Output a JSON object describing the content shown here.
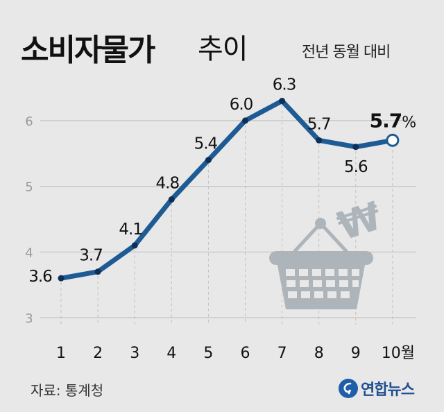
{
  "header": {
    "title_bold": "소비자물가",
    "title_light": "추이",
    "unit_note": "전년 동월 대비"
  },
  "footer": {
    "source": "자료: 통계청",
    "logo_text": "연합뉴스"
  },
  "colors": {
    "line": "#1e5b94",
    "background": "#e8e8e8",
    "basket": "#adb5bb"
  },
  "chart_data": {
    "type": "line",
    "title": "소비자물가 추이",
    "subtitle": "전년 동월 대비",
    "xlabel": "",
    "ylabel": "",
    "x": [
      "1",
      "2",
      "3",
      "4",
      "5",
      "6",
      "7",
      "8",
      "9",
      "10월"
    ],
    "series": [
      {
        "values": [
          3.6,
          3.7,
          4.1,
          4.8,
          5.4,
          6.0,
          6.3,
          5.7,
          5.6,
          5.7
        ],
        "labels": [
          "3.6",
          "3.7",
          "4.1",
          "4.8",
          "5.4",
          "6.0",
          "6.3",
          "5.7",
          "5.6",
          "5.7%"
        ]
      }
    ],
    "yticks": [
      "3",
      "4",
      "5",
      "6"
    ],
    "ylim": [
      3,
      6.5
    ],
    "grid": true,
    "legend": "none"
  }
}
